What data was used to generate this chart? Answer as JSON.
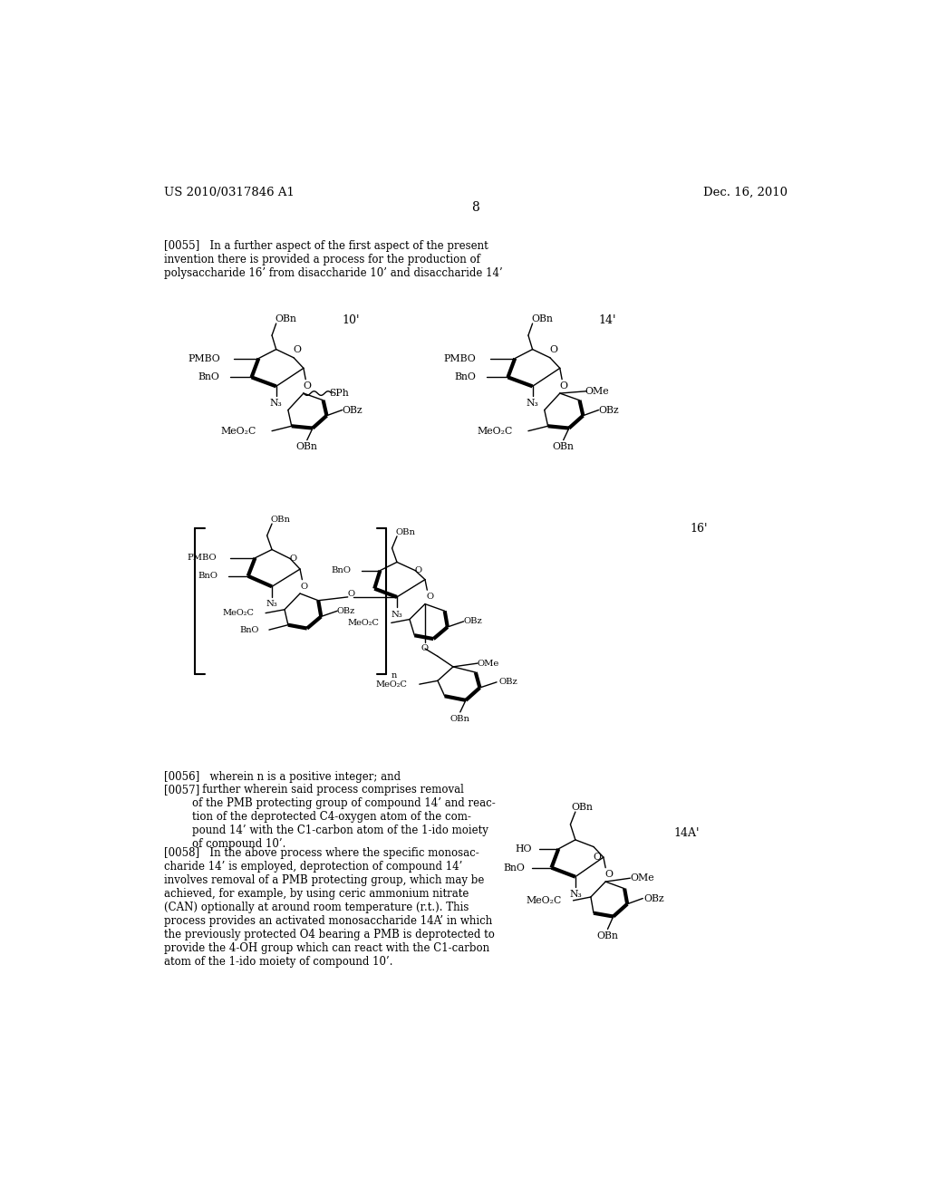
{
  "background_color": "#ffffff",
  "header_left": "US 2010/0317846 A1",
  "header_right": "Dec. 16, 2010",
  "page_number": "8",
  "paragraph_0055": "[0055]   In a further aspect of the first aspect of the present\ninvention there is provided a process for the production of\npolysaccharide 16’ from disaccharide 10’ and disaccharide 14’",
  "paragraph_0056": "[0056]   wherein n is a positive integer; and",
  "paragraph_0057_tag": "[0057]",
  "paragraph_0057_body": "   further wherein said process comprises removal\nof the PMB protecting group of compound 14’ and reac-\ntion of the deprotected C4-oxygen atom of the com-\npound 14’ with the C1-carbon atom of the 1-ido moiety\nof compound 10’.",
  "paragraph_0058": "[0058]   In the above process where the specific monosac-\ncharide 14’ is employed, deprotection of compound 14’\ninvolves removal of a PMB protecting group, which may be\nachieved, for example, by using ceric ammonium nitrate\n(CAN) optionally at around room temperature (r.t.). This\nprocess provides an activated monosaccharide 14A’ in which\nthe previously protected O4 bearing a PMB is deprotected to\nprovide the 4-OH group which can react with the C1-carbon\natom of the 1-ido moiety of compound 10’.",
  "text_color": "#000000",
  "font_size_header": 9.5,
  "font_size_body": 8.5,
  "font_size_label": 9.0,
  "font_size_chem": 7.8
}
